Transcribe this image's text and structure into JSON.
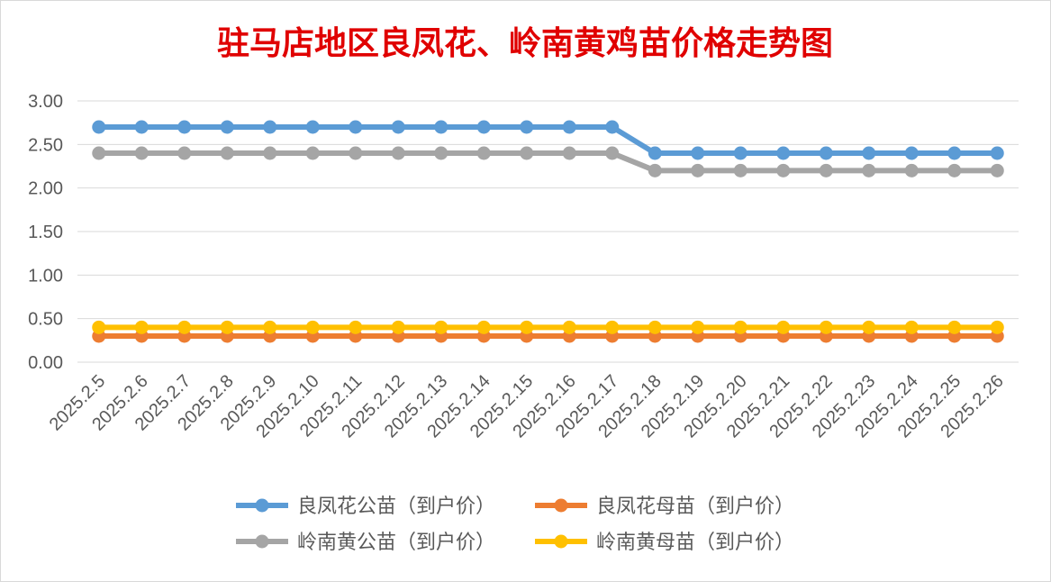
{
  "chart_data": {
    "type": "line",
    "title": "驻马店地区良凤花、岭南黄鸡苗价格走势图",
    "xlabel": "",
    "ylabel": "",
    "categories": [
      "2025.2.5",
      "2025.2.6",
      "2025.2.7",
      "2025.2.8",
      "2025.2.9",
      "2025.2.10",
      "2025.2.11",
      "2025.2.12",
      "2025.2.13",
      "2025.2.14",
      "2025.2.15",
      "2025.2.16",
      "2025.2.17",
      "2025.2.18",
      "2025.2.19",
      "2025.2.20",
      "2025.2.21",
      "2025.2.22",
      "2025.2.23",
      "2025.2.24",
      "2025.2.25",
      "2025.2.26"
    ],
    "ylim": [
      0,
      3
    ],
    "yticks": [
      "0.00",
      "0.50",
      "1.00",
      "1.50",
      "2.00",
      "2.50",
      "3.00"
    ],
    "grid": true,
    "legend_position": "bottom",
    "series": [
      {
        "name": "良凤花公苗（到户价）",
        "color": "#5b9bd5",
        "values": [
          2.7,
          2.7,
          2.7,
          2.7,
          2.7,
          2.7,
          2.7,
          2.7,
          2.7,
          2.7,
          2.7,
          2.7,
          2.7,
          2.4,
          2.4,
          2.4,
          2.4,
          2.4,
          2.4,
          2.4,
          2.4,
          2.4
        ]
      },
      {
        "name": "良凤花母苗（到户价）",
        "color": "#ed7d31",
        "values": [
          0.3,
          0.3,
          0.3,
          0.3,
          0.3,
          0.3,
          0.3,
          0.3,
          0.3,
          0.3,
          0.3,
          0.3,
          0.3,
          0.3,
          0.3,
          0.3,
          0.3,
          0.3,
          0.3,
          0.3,
          0.3,
          0.3
        ]
      },
      {
        "name": "岭南黄公苗（到户价）",
        "color": "#a5a5a5",
        "values": [
          2.4,
          2.4,
          2.4,
          2.4,
          2.4,
          2.4,
          2.4,
          2.4,
          2.4,
          2.4,
          2.4,
          2.4,
          2.4,
          2.2,
          2.2,
          2.2,
          2.2,
          2.2,
          2.2,
          2.2,
          2.2,
          2.2
        ]
      },
      {
        "name": "岭南黄母苗（到户价）",
        "color": "#ffc000",
        "values": [
          0.4,
          0.4,
          0.4,
          0.4,
          0.4,
          0.4,
          0.4,
          0.4,
          0.4,
          0.4,
          0.4,
          0.4,
          0.4,
          0.4,
          0.4,
          0.4,
          0.4,
          0.4,
          0.4,
          0.4,
          0.4,
          0.4
        ]
      }
    ],
    "title_color": "#e00000"
  }
}
